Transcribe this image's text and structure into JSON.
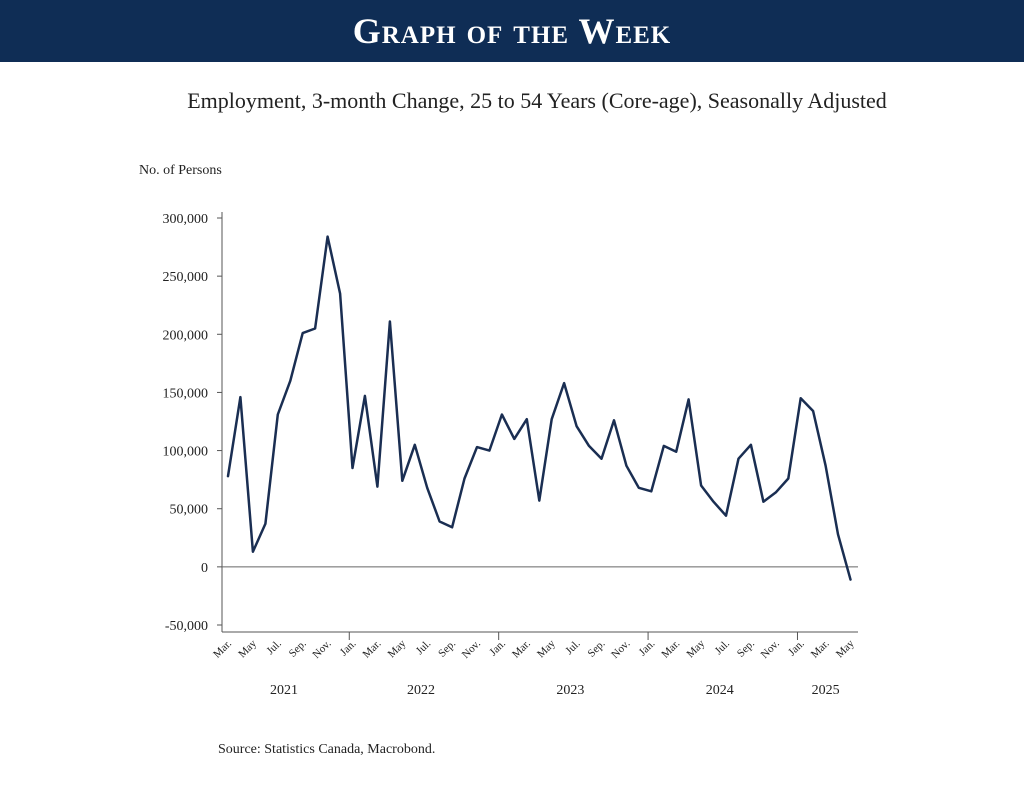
{
  "banner": {
    "title": "Graph of the Week",
    "color": "#0f2d55"
  },
  "source": "Source: Statistics Canada, Macrobond.",
  "chart_data": {
    "type": "line",
    "title": "Employment, 3-month Change, 25 to 54 Years (Core-age), Seasonally Adjusted",
    "ylabel": "No. of Persons",
    "xlabel": "",
    "ylim": [
      -50000,
      300000
    ],
    "y_ticks": [
      300000,
      250000,
      200000,
      150000,
      100000,
      50000,
      0,
      -50000
    ],
    "y_tick_labels": [
      "300,000",
      "250,000",
      "200,000",
      "150,000",
      "100,000",
      "50,000",
      "0",
      "-50,000"
    ],
    "grid": false,
    "line_color": "#1a2e52",
    "month_tick_labels": [
      "Mar.",
      "May",
      "Jul.",
      "Sep.",
      "Nov.",
      "Jan.",
      "Mar.",
      "May",
      "Jul.",
      "Sep.",
      "Nov.",
      "Jan.",
      "Mar.",
      "May",
      "Jul.",
      "Sep.",
      "Nov.",
      "Jan.",
      "Mar.",
      "May",
      "Jul.",
      "Sep.",
      "Nov.",
      "Jan.",
      "Mar.",
      "May"
    ],
    "year_labels": [
      "2021",
      "2022",
      "2023",
      "2024",
      "2025"
    ],
    "x": [
      "2021-03",
      "2021-04",
      "2021-05",
      "2021-06",
      "2021-07",
      "2021-08",
      "2021-09",
      "2021-10",
      "2021-11",
      "2021-12",
      "2022-01",
      "2022-02",
      "2022-03",
      "2022-04",
      "2022-05",
      "2022-06",
      "2022-07",
      "2022-08",
      "2022-09",
      "2022-10",
      "2022-11",
      "2022-12",
      "2023-01",
      "2023-02",
      "2023-03",
      "2023-04",
      "2023-05",
      "2023-06",
      "2023-07",
      "2023-08",
      "2023-09",
      "2023-10",
      "2023-11",
      "2023-12",
      "2024-01",
      "2024-02",
      "2024-03",
      "2024-04",
      "2024-05",
      "2024-06",
      "2024-07",
      "2024-08",
      "2024-09",
      "2024-10",
      "2024-11",
      "2024-12",
      "2025-01",
      "2025-02",
      "2025-03",
      "2025-04",
      "2025-05"
    ],
    "series": [
      {
        "values": [
          78000,
          146000,
          13000,
          37000,
          131000,
          160000,
          201000,
          205000,
          284000,
          235000,
          85000,
          147000,
          69000,
          211000,
          74000,
          105000,
          68000,
          39000,
          34000,
          76000,
          103000,
          100000,
          131000,
          110000,
          127000,
          57000,
          127000,
          158000,
          121000,
          104000,
          93000,
          126000,
          87000,
          68000,
          65000,
          104000,
          99000,
          144000,
          70000,
          56000,
          44000,
          93000,
          105000,
          56000,
          64000,
          76000,
          145000,
          134000,
          87000,
          28000,
          -11000
        ]
      }
    ]
  }
}
